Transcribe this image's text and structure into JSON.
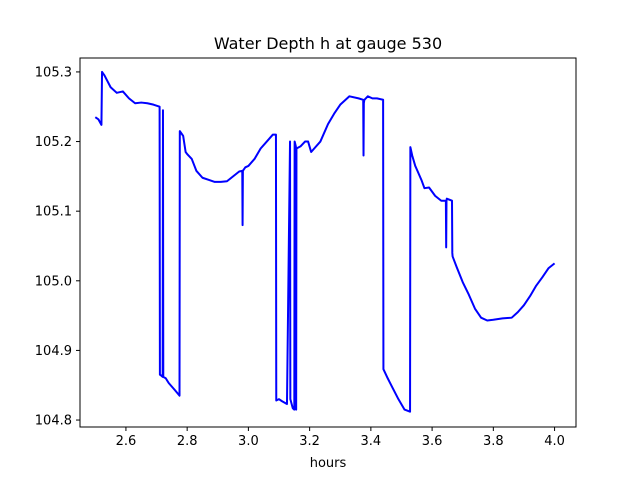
{
  "chart_data": {
    "type": "line",
    "title": "Water Depth h at gauge 530",
    "xlabel": "hours",
    "ylabel": "",
    "xlim": [
      2.45,
      4.07
    ],
    "ylim": [
      104.79,
      105.32
    ],
    "grid": false,
    "legend": "none",
    "x_ticks": [
      2.6,
      2.8,
      3.0,
      3.2,
      3.4,
      3.6,
      3.8,
      4.0
    ],
    "x_tick_labels": [
      "2.6",
      "2.8",
      "3.0",
      "3.2",
      "3.4",
      "3.6",
      "3.8",
      "4.0"
    ],
    "y_ticks": [
      104.8,
      104.9,
      105.0,
      105.1,
      105.2,
      105.3
    ],
    "y_tick_labels": [
      "104.8",
      "104.9",
      "105.0",
      "105.1",
      "105.2",
      "105.3"
    ],
    "series": [
      {
        "color": "#0000ff",
        "x": [
          2.5,
          2.51,
          2.52,
          2.522,
          2.53,
          2.55,
          2.57,
          2.59,
          2.61,
          2.63,
          2.65,
          2.67,
          2.69,
          2.71,
          2.711,
          2.712,
          2.72,
          2.721,
          2.722,
          2.73,
          2.74,
          2.76,
          2.775,
          2.776,
          2.787,
          2.795,
          2.8,
          2.815,
          2.83,
          2.85,
          2.87,
          2.89,
          2.91,
          2.93,
          2.95,
          2.97,
          2.98,
          2.981,
          2.982,
          2.99,
          3.0,
          3.02,
          3.04,
          3.06,
          3.08,
          3.09,
          3.091,
          3.1,
          3.11,
          3.126,
          3.136,
          3.137,
          3.145,
          3.15,
          3.151,
          3.155,
          3.156,
          3.157,
          3.17,
          3.185,
          3.195,
          3.205,
          3.215,
          3.235,
          3.26,
          3.28,
          3.3,
          3.33,
          3.36,
          3.375,
          3.376,
          3.377,
          3.378,
          3.379,
          3.39,
          3.405,
          3.42,
          3.44,
          3.441,
          3.455,
          3.47,
          3.49,
          3.51,
          3.528,
          3.529,
          3.535,
          3.545,
          3.55,
          3.565,
          3.575,
          3.59,
          3.61,
          3.63,
          3.645,
          3.646,
          3.647,
          3.648,
          3.665,
          3.666,
          3.667,
          3.68,
          3.7,
          3.72,
          3.74,
          3.76,
          3.78,
          3.8,
          3.83,
          3.86,
          3.88,
          3.9,
          3.92,
          3.94,
          3.96,
          3.98,
          4.0
        ],
        "y": [
          105.235,
          105.232,
          105.224,
          105.3,
          105.295,
          105.278,
          105.27,
          105.272,
          105.262,
          105.255,
          105.256,
          105.255,
          105.253,
          105.25,
          104.865,
          104.865,
          104.862,
          105.245,
          104.862,
          104.86,
          104.853,
          104.843,
          104.835,
          105.215,
          105.208,
          105.185,
          105.182,
          105.175,
          105.158,
          105.148,
          105.145,
          105.142,
          105.142,
          105.143,
          105.15,
          105.157,
          105.158,
          105.08,
          105.158,
          105.163,
          105.165,
          105.175,
          105.19,
          105.2,
          105.21,
          105.21,
          104.828,
          104.83,
          104.827,
          104.823,
          105.2,
          104.83,
          104.817,
          104.815,
          105.2,
          105.193,
          104.815,
          105.19,
          105.193,
          105.2,
          105.2,
          105.185,
          105.19,
          105.2,
          105.225,
          105.24,
          105.253,
          105.265,
          105.262,
          105.26,
          105.18,
          105.255,
          105.258,
          105.26,
          105.265,
          105.262,
          105.262,
          105.26,
          104.873,
          104.86,
          104.847,
          104.83,
          104.815,
          104.812,
          105.192,
          105.18,
          105.165,
          105.16,
          105.145,
          105.133,
          105.134,
          105.122,
          105.115,
          105.115,
          105.048,
          105.115,
          105.118,
          105.115,
          105.04,
          105.035,
          105.02,
          104.998,
          104.98,
          104.96,
          104.947,
          104.943,
          104.944,
          104.946,
          104.947,
          104.955,
          104.965,
          104.978,
          104.993,
          105.005,
          105.018,
          105.025
        ]
      }
    ]
  }
}
